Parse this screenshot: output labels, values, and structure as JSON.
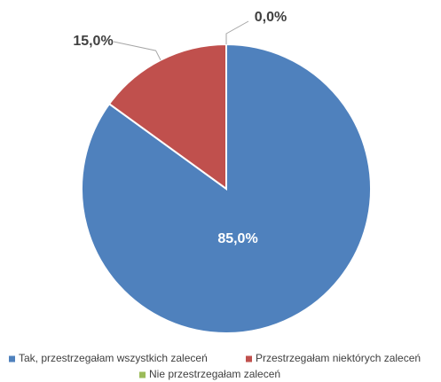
{
  "chart_data": {
    "type": "pie",
    "categories": [
      "Tak, przestrzegałam wszystkich zaleceń",
      "Przestrzegałam niektórych zaleceń",
      "Nie przestrzegałam zaleceń"
    ],
    "values": [
      85,
      15,
      0
    ],
    "value_labels": [
      "85,0%",
      "15,0%",
      "0,0%"
    ],
    "colors": [
      "#4f81bd",
      "#c0504d",
      "#9bbb59"
    ],
    "legend": "bottom"
  }
}
